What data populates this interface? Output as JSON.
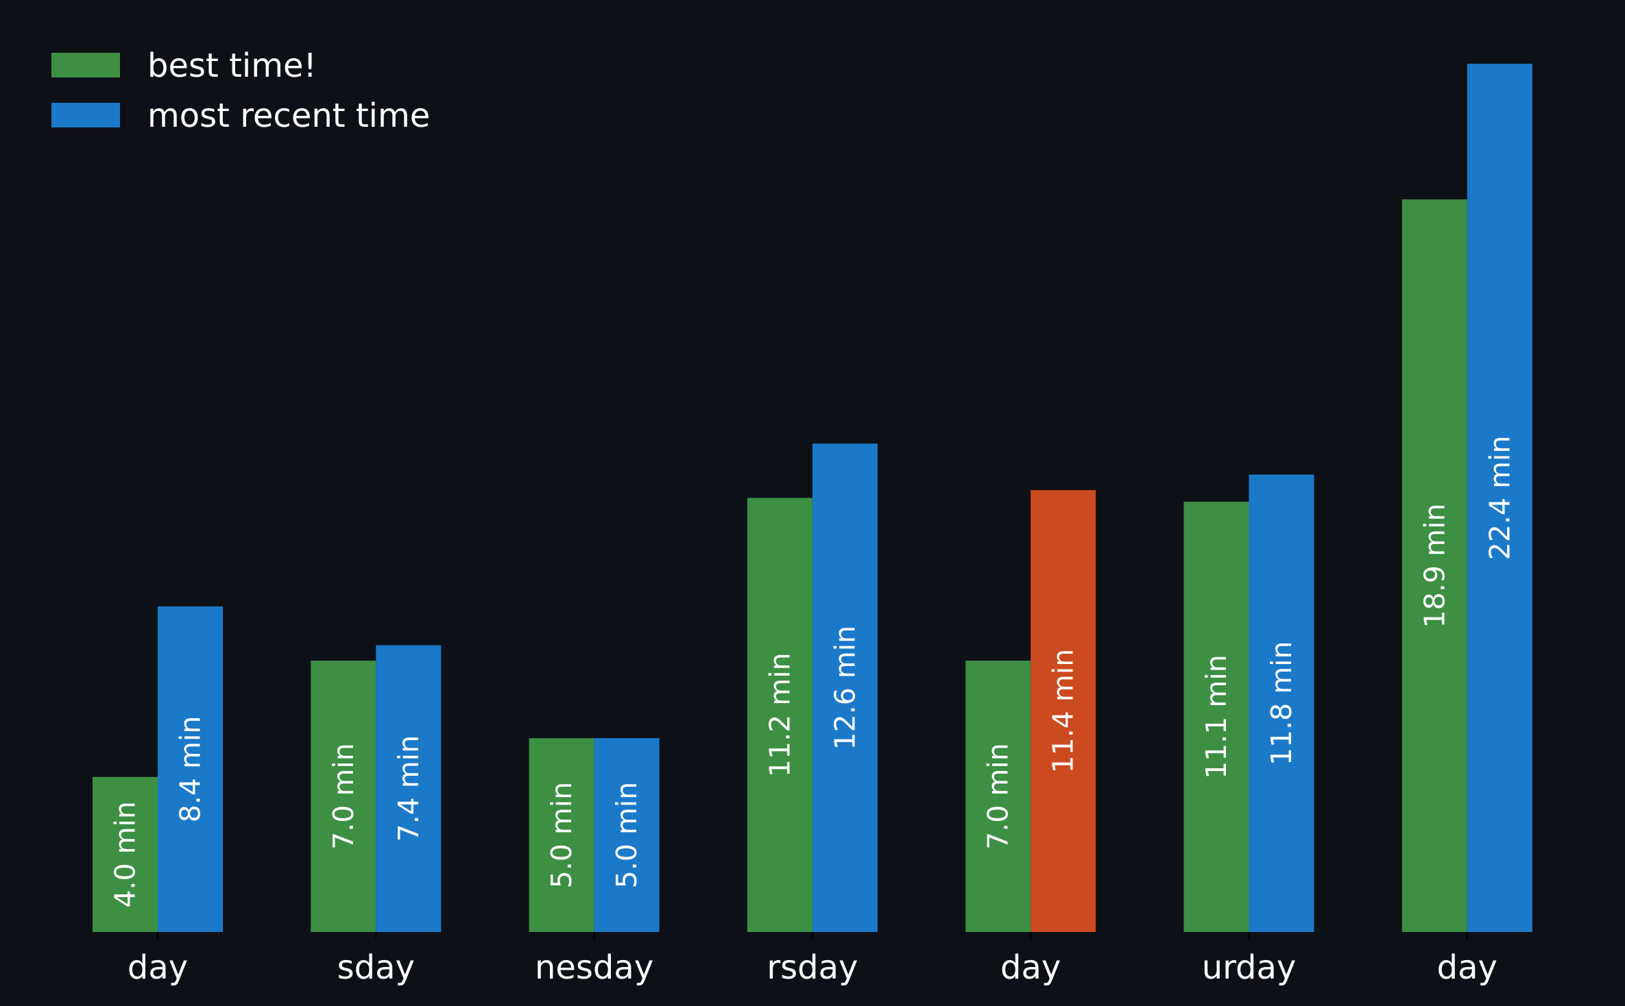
{
  "chart_data": {
    "type": "bar",
    "categories": [
      "day",
      "sday",
      "nesday",
      "rsday",
      "day",
      "urday",
      "day"
    ],
    "series": [
      {
        "name": "best time!",
        "values": [
          4.0,
          7.0,
          5.0,
          11.2,
          7.0,
          11.1,
          18.9
        ],
        "labels": [
          "4.0 min",
          "7.0 min",
          "5.0 min",
          "11.2 min",
          "7.0 min",
          "11.1 min",
          "18.9 min"
        ],
        "color": "#3d8f43"
      },
      {
        "name": "most recent time",
        "values": [
          8.4,
          7.4,
          5.0,
          12.6,
          11.4,
          11.8,
          22.4
        ],
        "labels": [
          "8.4 min",
          "7.4 min",
          "5.0 min",
          "12.6 min",
          "11.4 min",
          "11.8 min",
          "22.4 min"
        ],
        "color": "#1b79c9",
        "highlight": {
          "index": 4,
          "color": "#cc4a1f"
        }
      }
    ],
    "ylim": [
      0,
      22.4
    ],
    "grid": false,
    "legend_position": "top-left",
    "background": "#0d1117",
    "text_color": "#ffffff"
  }
}
